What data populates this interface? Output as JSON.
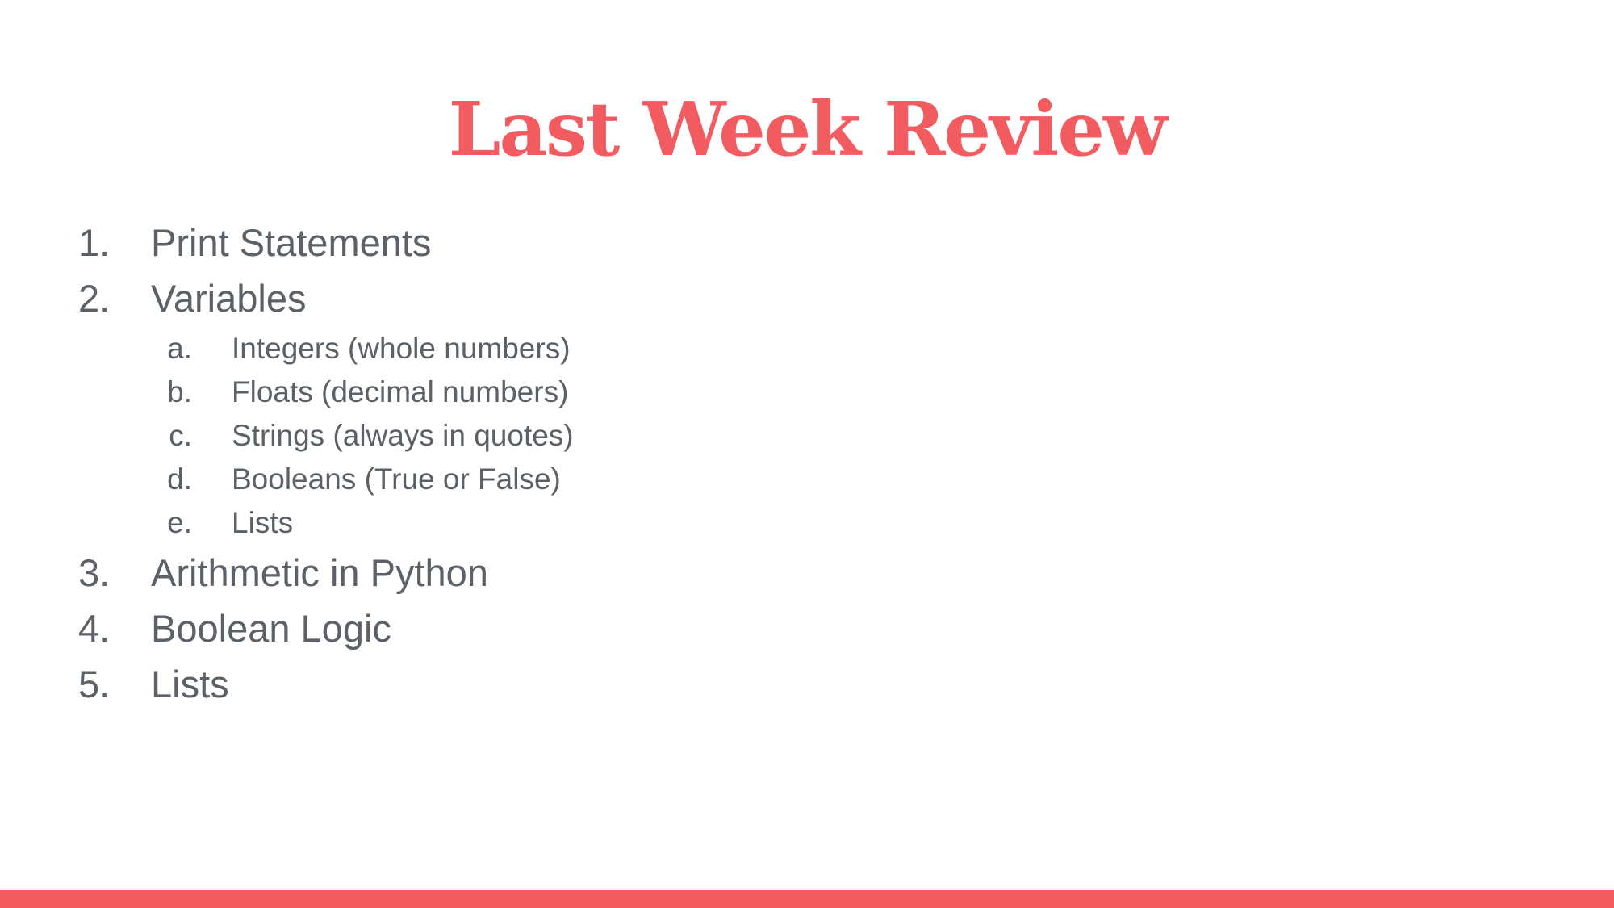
{
  "slide": {
    "title": "Last Week Review",
    "accent_color": "#f25c61",
    "text_color": "#5b6166"
  },
  "list": {
    "items": [
      {
        "number": "1.",
        "label": "Print Statements"
      },
      {
        "number": "2.",
        "label": "Variables"
      },
      {
        "number": "3.",
        "label": "Arithmetic in Python"
      },
      {
        "number": "4.",
        "label": "Boolean Logic"
      },
      {
        "number": "5.",
        "label": "Lists"
      }
    ],
    "variables_subitems": [
      {
        "letter": "a.",
        "label": "Integers (whole numbers)"
      },
      {
        "letter": "b.",
        "label": "Floats (decimal numbers)"
      },
      {
        "letter": "c.",
        "label": "Strings (always in quotes)"
      },
      {
        "letter": "d.",
        "label": "Booleans (True or False)"
      },
      {
        "letter": "e.",
        "label": "Lists"
      }
    ]
  }
}
